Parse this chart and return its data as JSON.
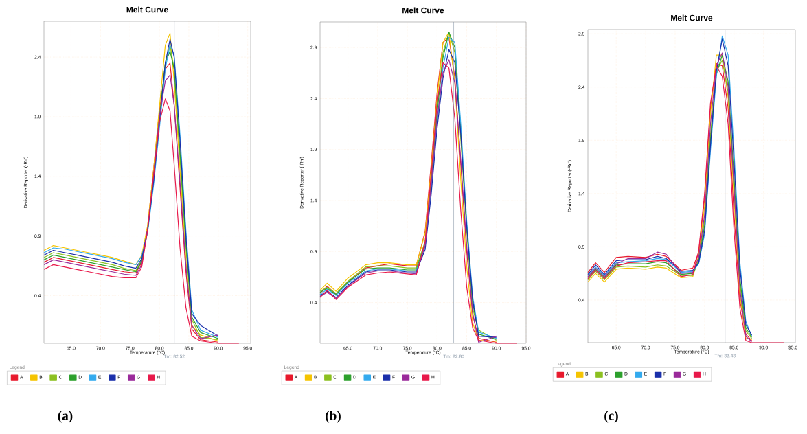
{
  "chart_data": [
    {
      "type": "line",
      "title": "Melt Curve",
      "xlabel": "Temperature (°C)",
      "ylabel": "Derivative Reporter (-Rn')",
      "legend_title": "Legend",
      "legend": "bottom",
      "grid": true,
      "marker": "none",
      "line_style": "solid",
      "xlim": [
        60.4,
        95.5
      ],
      "ylim": [
        0,
        2.7
      ],
      "xticks": [
        {
          "value": 65,
          "label": "65.0"
        },
        {
          "value": 70,
          "label": "70.0"
        },
        {
          "value": 75,
          "label": "75.0"
        },
        {
          "value": 80,
          "label": "80.0"
        },
        {
          "value": 85,
          "label": "85.0"
        },
        {
          "value": 90,
          "label": "90.0"
        },
        {
          "value": 95,
          "label": "95.0"
        }
      ],
      "yticks": [
        0.4,
        0.9,
        1.4,
        1.9,
        2.4
      ],
      "ref_lines": [
        {
          "axis": "x",
          "value": 82.52,
          "label": "Tm: 82.52",
          "color": "#8090a0"
        }
      ],
      "annotations": [
        "(a)"
      ],
      "x": [
        60.4,
        62,
        64,
        66,
        68,
        70,
        72,
        74,
        76,
        77,
        78,
        79,
        80,
        81,
        81.8,
        82.5,
        83.5,
        84.5,
        85.5,
        87,
        90,
        93.5
      ],
      "series": [
        {
          "name": "A",
          "color": "#e8192c",
          "values": [
            0.68,
            0.72,
            0.7,
            0.68,
            0.66,
            0.64,
            0.62,
            0.6,
            0.59,
            0.68,
            0.98,
            1.45,
            1.95,
            2.3,
            2.35,
            2.0,
            1.3,
            0.6,
            0.12,
            0.03,
            0.01,
            null
          ]
        },
        {
          "name": "B",
          "color": "#f5c400",
          "values": [
            0.78,
            0.82,
            0.8,
            0.78,
            0.76,
            0.74,
            0.72,
            0.69,
            0.66,
            0.74,
            0.99,
            1.45,
            1.98,
            2.5,
            2.6,
            2.2,
            1.45,
            0.7,
            0.15,
            0.07,
            0.02,
            null
          ]
        },
        {
          "name": "C",
          "color": "#8cc020",
          "values": [
            0.72,
            0.76,
            0.74,
            0.72,
            0.7,
            0.68,
            0.66,
            0.63,
            0.61,
            0.7,
            0.95,
            1.4,
            1.9,
            2.35,
            2.5,
            2.3,
            1.55,
            0.8,
            0.2,
            0.05,
            0.03,
            null
          ]
        },
        {
          "name": "D",
          "color": "#2ca02c",
          "values": [
            0.7,
            0.74,
            0.72,
            0.7,
            0.68,
            0.66,
            0.64,
            0.62,
            0.6,
            0.69,
            0.94,
            1.38,
            1.88,
            2.35,
            2.45,
            2.3,
            1.6,
            0.85,
            0.22,
            0.09,
            0.04,
            null
          ]
        },
        {
          "name": "E",
          "color": "#33aaee",
          "values": [
            0.76,
            0.8,
            0.79,
            0.77,
            0.75,
            0.73,
            0.71,
            0.68,
            0.66,
            0.73,
            0.93,
            1.32,
            1.8,
            2.3,
            2.5,
            2.42,
            1.75,
            0.95,
            0.28,
            0.11,
            0.05,
            null
          ]
        },
        {
          "name": "F",
          "color": "#1a2faa",
          "values": [
            0.74,
            0.78,
            0.76,
            0.74,
            0.72,
            0.7,
            0.68,
            0.65,
            0.63,
            0.71,
            0.95,
            1.35,
            1.85,
            2.35,
            2.55,
            2.4,
            1.7,
            0.9,
            0.25,
            0.15,
            0.06,
            null
          ]
        },
        {
          "name": "G",
          "color": "#9a2a9a",
          "values": [
            0.66,
            0.7,
            0.68,
            0.66,
            0.64,
            0.62,
            0.6,
            0.58,
            0.57,
            0.66,
            0.96,
            1.4,
            1.9,
            2.2,
            2.25,
            2.0,
            1.35,
            0.65,
            0.15,
            0.04,
            0.07,
            null
          ]
        },
        {
          "name": "H",
          "color": "#e8194a",
          "values": [
            0.62,
            0.66,
            0.64,
            0.62,
            0.6,
            0.58,
            0.56,
            0.55,
            0.55,
            0.64,
            0.95,
            1.4,
            1.85,
            2.05,
            1.95,
            1.5,
            0.8,
            0.3,
            0.06,
            0.02,
            0.0,
            0.0
          ]
        }
      ]
    },
    {
      "type": "line",
      "title": "Melt Curve",
      "xlabel": "Temperature (°C)",
      "ylabel": "Derivative Reporter (-Rn')",
      "legend_title": "Legend",
      "legend": "bottom",
      "grid": true,
      "marker": "none",
      "line_style": "solid",
      "xlim": [
        60.3,
        95
      ],
      "ylim": [
        0,
        3.15
      ],
      "xticks": [
        {
          "value": 65,
          "label": "65.0"
        },
        {
          "value": 70,
          "label": "70.0"
        },
        {
          "value": 75,
          "label": "75.0"
        },
        {
          "value": 80,
          "label": "80.0"
        },
        {
          "value": 85,
          "label": "85.0"
        },
        {
          "value": 90,
          "label": "90.0"
        },
        {
          "value": 95,
          "label": "95.0"
        }
      ],
      "yticks": [
        0.4,
        0.9,
        1.4,
        1.9,
        2.4,
        2.9
      ],
      "ref_lines": [
        {
          "axis": "x",
          "value": 82.8,
          "label": "Tm: 82.80",
          "color": "#8090a0"
        }
      ],
      "annotations": [
        "(b)"
      ],
      "x": [
        60.3,
        61.5,
        63,
        65,
        68,
        70,
        72,
        75,
        76.5,
        78,
        79,
        80,
        81,
        82,
        83,
        84,
        85,
        86,
        87,
        90,
        93.5
      ],
      "series": [
        {
          "name": "A",
          "color": "#e8192c",
          "values": [
            0.49,
            0.56,
            0.48,
            0.6,
            0.74,
            0.76,
            0.78,
            0.76,
            0.76,
            1.1,
            1.75,
            2.45,
            2.95,
            3.0,
            2.6,
            1.75,
            0.9,
            0.28,
            0.05,
            0.01,
            null
          ]
        },
        {
          "name": "B",
          "color": "#f5c400",
          "values": [
            0.52,
            0.59,
            0.51,
            0.64,
            0.77,
            0.79,
            0.79,
            0.77,
            0.77,
            1.08,
            1.7,
            2.4,
            2.95,
            3.05,
            2.55,
            1.6,
            0.75,
            0.2,
            0.03,
            0.02,
            null
          ]
        },
        {
          "name": "C",
          "color": "#8cc020",
          "values": [
            0.51,
            0.55,
            0.49,
            0.61,
            0.75,
            0.76,
            0.76,
            0.74,
            0.74,
            1.0,
            1.6,
            2.3,
            2.85,
            3.05,
            2.85,
            2.0,
            1.1,
            0.34,
            0.13,
            0.03,
            null
          ]
        },
        {
          "name": "D",
          "color": "#2ca02c",
          "values": [
            0.5,
            0.54,
            0.48,
            0.6,
            0.73,
            0.74,
            0.74,
            0.72,
            0.72,
            0.98,
            1.55,
            2.25,
            2.8,
            3.05,
            2.9,
            2.1,
            1.15,
            0.4,
            0.09,
            0.04,
            null
          ]
        },
        {
          "name": "E",
          "color": "#33aaee",
          "values": [
            0.48,
            0.53,
            0.47,
            0.59,
            0.71,
            0.73,
            0.73,
            0.71,
            0.71,
            0.95,
            1.5,
            2.15,
            2.7,
            3.0,
            2.95,
            2.15,
            1.2,
            0.46,
            0.11,
            0.05,
            null
          ]
        },
        {
          "name": "F",
          "color": "#1a2faa",
          "values": [
            0.47,
            0.51,
            0.45,
            0.57,
            0.7,
            0.72,
            0.72,
            0.7,
            0.7,
            0.92,
            1.45,
            2.1,
            2.6,
            2.88,
            2.75,
            2.05,
            1.15,
            0.43,
            0.07,
            0.06,
            null
          ]
        },
        {
          "name": "G",
          "color": "#9a2a9a",
          "values": [
            0.46,
            0.5,
            0.44,
            0.56,
            0.69,
            0.71,
            0.71,
            0.69,
            0.68,
            0.96,
            1.55,
            2.2,
            2.65,
            2.78,
            2.55,
            1.8,
            0.95,
            0.3,
            0.01,
            0.07,
            null
          ]
        },
        {
          "name": "H",
          "color": "#e8194a",
          "values": [
            0.45,
            0.52,
            0.43,
            0.55,
            0.67,
            0.69,
            0.7,
            0.68,
            0.67,
            1.0,
            1.65,
            2.35,
            2.75,
            2.7,
            2.2,
            1.3,
            0.55,
            0.15,
            0.03,
            0.0,
            0.0
          ]
        }
      ]
    },
    {
      "type": "line",
      "title": "Melt Curve",
      "xlabel": "Temperature (°C)",
      "ylabel": "Derivative Reporter (-Rn')",
      "legend_title": "Legend",
      "legend": "bottom",
      "grid": true,
      "marker": "none",
      "line_style": "solid",
      "xlim": [
        60.2,
        95.4
      ],
      "ylim": [
        0,
        2.94
      ],
      "xticks": [
        {
          "value": 65,
          "label": "65.0"
        },
        {
          "value": 70,
          "label": "70.0"
        },
        {
          "value": 75,
          "label": "75.0"
        },
        {
          "value": 80,
          "label": "80.0"
        },
        {
          "value": 85,
          "label": "85.0"
        },
        {
          "value": 90,
          "label": "90.0"
        },
        {
          "value": 95,
          "label": "95.0"
        }
      ],
      "yticks": [
        0.4,
        0.9,
        1.4,
        1.9,
        2.4,
        2.9
      ],
      "ref_lines": [
        {
          "axis": "x",
          "value": 83.48,
          "label": "Tm: 83.48",
          "color": "#8090a0"
        }
      ],
      "annotations": [
        "(c)"
      ],
      "x": [
        60.2,
        61.5,
        63,
        65,
        67,
        70,
        72,
        73.5,
        76,
        78,
        79,
        80,
        81,
        82,
        83,
        84,
        85,
        86,
        87,
        88,
        93.5
      ],
      "series": [
        {
          "name": "A",
          "color": "#e8192c",
          "values": [
            0.66,
            0.75,
            0.66,
            0.8,
            0.81,
            0.8,
            0.83,
            0.81,
            0.68,
            0.7,
            0.85,
            1.35,
            2.2,
            2.62,
            2.6,
            2.2,
            1.2,
            0.4,
            0.08,
            0.02,
            null
          ]
        },
        {
          "name": "B",
          "color": "#f5c400",
          "values": [
            0.57,
            0.65,
            0.57,
            0.69,
            0.7,
            0.69,
            0.71,
            0.7,
            0.61,
            0.62,
            0.82,
            1.28,
            2.15,
            2.7,
            2.7,
            2.3,
            1.35,
            0.45,
            0.04,
            0.03,
            null
          ]
        },
        {
          "name": "C",
          "color": "#8cc020",
          "values": [
            0.59,
            0.67,
            0.59,
            0.71,
            0.72,
            0.71,
            0.73,
            0.72,
            0.63,
            0.63,
            0.78,
            1.15,
            1.95,
            2.55,
            2.65,
            2.35,
            1.45,
            0.55,
            0.11,
            0.04,
            null
          ]
        },
        {
          "name": "D",
          "color": "#2ca02c",
          "values": [
            0.61,
            0.69,
            0.61,
            0.73,
            0.74,
            0.74,
            0.76,
            0.75,
            0.64,
            0.65,
            0.76,
            1.1,
            1.9,
            2.52,
            2.7,
            2.45,
            1.55,
            0.6,
            0.14,
            0.05,
            null
          ]
        },
        {
          "name": "E",
          "color": "#33aaee",
          "values": [
            0.63,
            0.71,
            0.63,
            0.75,
            0.76,
            0.77,
            0.79,
            0.78,
            0.66,
            0.67,
            0.74,
            1.02,
            1.8,
            2.5,
            2.88,
            2.7,
            1.8,
            0.75,
            0.2,
            0.06,
            null
          ]
        },
        {
          "name": "F",
          "color": "#1a2faa",
          "values": [
            0.64,
            0.73,
            0.64,
            0.77,
            0.78,
            0.78,
            0.81,
            0.79,
            0.67,
            0.68,
            0.75,
            1.05,
            1.85,
            2.55,
            2.85,
            2.6,
            1.7,
            0.7,
            0.17,
            0.07,
            null
          ]
        },
        {
          "name": "G",
          "color": "#9a2a9a",
          "values": [
            0.62,
            0.7,
            0.62,
            0.74,
            0.79,
            0.79,
            0.85,
            0.83,
            0.65,
            0.66,
            0.8,
            1.2,
            2.05,
            2.6,
            2.72,
            2.4,
            1.45,
            0.5,
            0.06,
            0.01,
            null
          ]
        },
        {
          "name": "H",
          "color": "#e8194a",
          "values": [
            0.6,
            0.68,
            0.6,
            0.72,
            0.75,
            0.76,
            0.77,
            0.77,
            0.62,
            0.64,
            0.86,
            1.4,
            2.25,
            2.6,
            2.5,
            2.05,
            1.05,
            0.32,
            0.02,
            0.0,
            0.0
          ]
        }
      ]
    }
  ]
}
